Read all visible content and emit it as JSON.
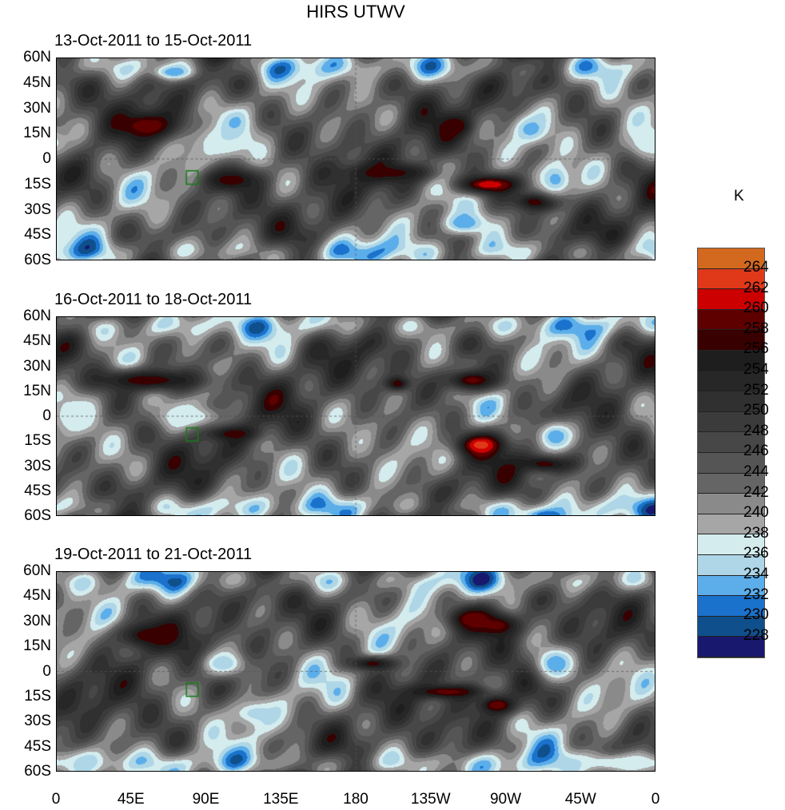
{
  "title": "HIRS UTWV",
  "unit": "K",
  "panels": [
    {
      "label": "13-Oct-2011 to 15-Oct-2011",
      "seed": 1,
      "features": [
        [
          55,
          20,
          260,
          14,
          6
        ],
        [
          105,
          -12,
          258,
          12,
          5
        ],
        [
          -100,
          -15,
          262,
          14,
          4
        ],
        [
          -70,
          -25,
          260,
          10,
          4
        ],
        [
          -120,
          20,
          258,
          6,
          4
        ],
        [
          -160,
          -8,
          257,
          20,
          4
        ],
        [
          -115,
          -38,
          232,
          10,
          5
        ],
        [
          -60,
          -12,
          233,
          8,
          8
        ],
        [
          -75,
          18,
          233,
          8,
          6
        ],
        [
          100,
          10,
          236,
          15,
          8
        ],
        [
          70,
          52,
          232,
          8,
          3
        ],
        [
          -5,
          10,
          236,
          10,
          8
        ]
      ]
    },
    {
      "label": "16-Oct-2011 to 18-Oct-2011",
      "seed": 2,
      "features": [
        [
          55,
          22,
          258,
          25,
          5
        ],
        [
          105,
          -10,
          258,
          10,
          3
        ],
        [
          -105,
          -17,
          263,
          10,
          5
        ],
        [
          -65,
          -28,
          260,
          12,
          4
        ],
        [
          -110,
          22,
          259,
          12,
          5
        ],
        [
          -155,
          20,
          258,
          5,
          3
        ],
        [
          -65,
          -60,
          230,
          12,
          4
        ],
        [
          -60,
          -12,
          232,
          10,
          8
        ],
        [
          80,
          0,
          236,
          15,
          5
        ],
        [
          10,
          0,
          236,
          10,
          8
        ]
      ]
    },
    {
      "label": "19-Oct-2011 to 21-Oct-2011",
      "seed": 3,
      "features": [
        [
          55,
          22,
          258,
          14,
          6
        ],
        [
          -110,
          32,
          260,
          10,
          5
        ],
        [
          -95,
          28,
          259,
          10,
          5
        ],
        [
          -125,
          -12,
          259,
          16,
          3
        ],
        [
          -95,
          -20,
          260,
          8,
          4
        ],
        [
          -170,
          5,
          257,
          10,
          3
        ],
        [
          -60,
          5,
          232,
          10,
          8
        ],
        [
          120,
          -25,
          235,
          12,
          6
        ],
        [
          100,
          5,
          234,
          10,
          6
        ],
        [
          -20,
          -55,
          236,
          30,
          4
        ]
      ]
    }
  ],
  "lat_labels": [
    "60N",
    "45N",
    "30N",
    "15N",
    "0",
    "15S",
    "30S",
    "45S",
    "60S"
  ],
  "lon_labels": [
    "0",
    "45E",
    "90E",
    "135E",
    "180",
    "135W",
    "90W",
    "45W",
    "0"
  ],
  "colorbar": {
    "labels": [
      "264",
      "262",
      "260",
      "258",
      "256",
      "254",
      "252",
      "250",
      "248",
      "246",
      "244",
      "242",
      "240",
      "238",
      "236",
      "234",
      "232",
      "230",
      "228"
    ],
    "colors": [
      "#d2691e",
      "#e0391a",
      "#cc0000",
      "#5e0000",
      "#380000",
      "#1e1e1e",
      "#272727",
      "#303030",
      "#3b3b3b",
      "#474747",
      "#555555",
      "#656565",
      "#8a8a8a",
      "#a6a6a6",
      "#d4ecee",
      "#aed6e6",
      "#5caeea",
      "#1a72cc",
      "#0f4f8c",
      "#18186e"
    ]
  },
  "chart_data": {
    "type": "heatmap",
    "title": "HIRS UTWV",
    "unit": "K",
    "xlim": [
      0,
      360
    ],
    "ylim": [
      -60,
      60
    ],
    "levels": [
      228,
      230,
      232,
      234,
      236,
      238,
      240,
      242,
      244,
      246,
      248,
      250,
      252,
      254,
      256,
      258,
      260,
      262,
      264
    ]
  }
}
